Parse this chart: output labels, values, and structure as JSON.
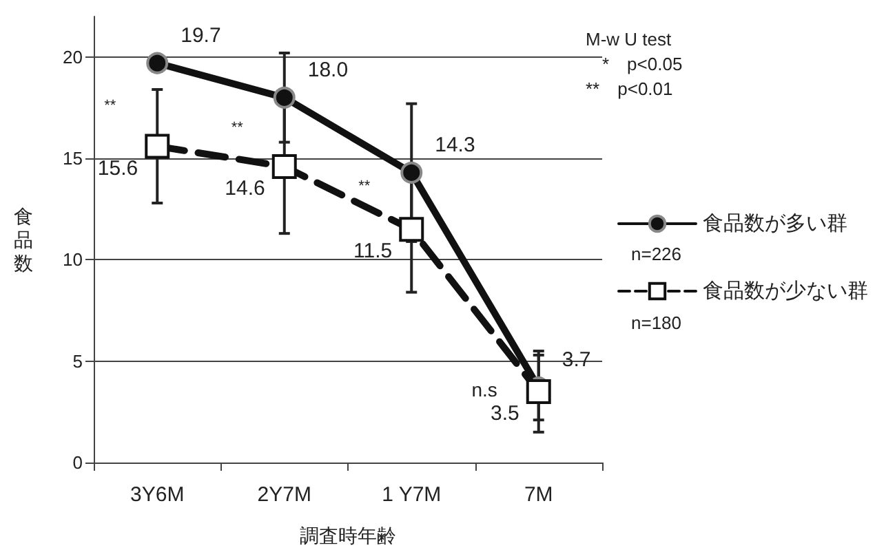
{
  "chart_data": {
    "type": "line",
    "xlabel": "調査時年齢",
    "ylabel": "食品数",
    "categories": [
      "3Y6M",
      "2Y7M",
      "1 Y7M",
      "7M"
    ],
    "series": [
      {
        "name": "食品数が多い群",
        "color": "#111111",
        "values": [
          19.7,
          18.0,
          14.3,
          3.7
        ],
        "value_labels": [
          "19.7",
          "18.0",
          "14.3",
          "3.7"
        ],
        "errors": [
          0.4,
          2.2,
          3.4,
          1.6
        ],
        "marker": "circle",
        "line_style": "solid"
      },
      {
        "name": "食品数が少ない群",
        "color": "#111111",
        "values": [
          15.6,
          14.6,
          11.5,
          3.5
        ],
        "value_labels": [
          "15.6",
          "14.6",
          "11.5",
          "3.5"
        ],
        "errors": [
          2.8,
          3.3,
          3.1,
          2.0
        ],
        "marker": "square",
        "line_style": "dashed"
      }
    ],
    "ylim": [
      0,
      22
    ],
    "yticks": [
      0,
      5,
      10,
      15,
      20
    ],
    "grid": "y",
    "legend": "right",
    "annotations": [
      {
        "text": "**",
        "x": "3Y6M",
        "y": 17.6
      },
      {
        "text": "**",
        "x": "2Y7M",
        "y": 16.5
      },
      {
        "text": "**",
        "x": "1 Y7M",
        "y": 13.6
      },
      {
        "text": "n.s",
        "x": "7M",
        "y": 3.6
      },
      "M-w U test",
      "*　p<0.05",
      "**　p<0.01",
      "n=226",
      "n=180"
    ]
  }
}
